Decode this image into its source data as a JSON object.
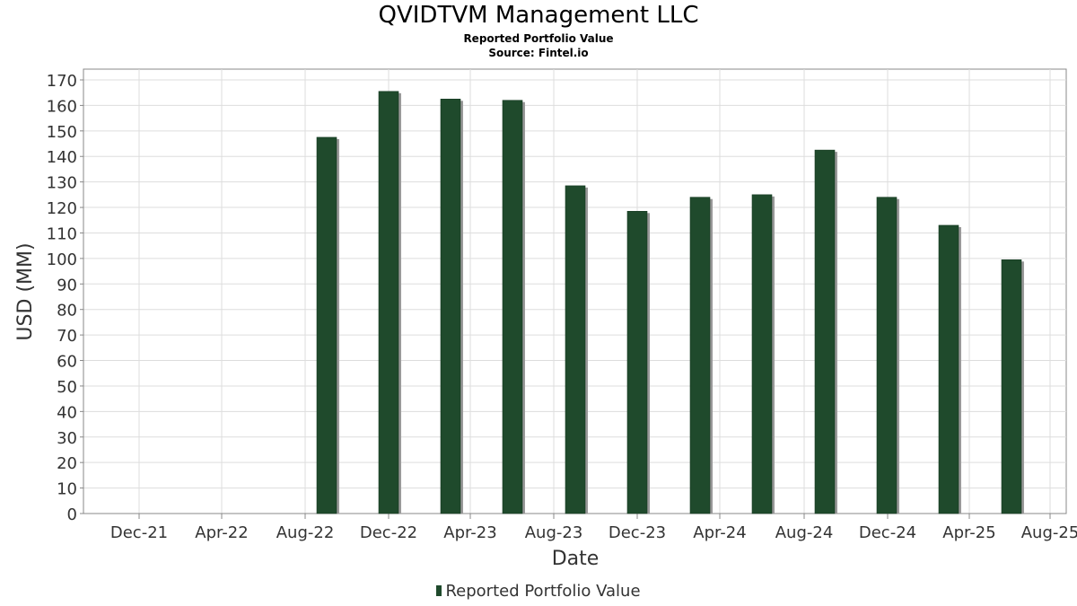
{
  "header": {
    "title": "QVIDTVM Management LLC",
    "subtitle": "Reported Portfolio Value",
    "source": "Source: Fintel.io"
  },
  "legend": {
    "label": "Reported Portfolio Value"
  },
  "colors": {
    "bar": "#1f4a2c",
    "bar_shadow": "#999999",
    "grid": "#dddddd",
    "axis": "#888888"
  },
  "chart_data": {
    "type": "bar",
    "title": "QVIDTVM Management LLC",
    "subtitle": "Reported Portfolio Value",
    "xlabel": "Date",
    "ylabel": "USD (MM)",
    "ylim": [
      0,
      172
    ],
    "yticks": [
      0,
      10,
      20,
      30,
      40,
      50,
      60,
      70,
      80,
      90,
      100,
      110,
      120,
      130,
      140,
      150,
      160,
      170
    ],
    "x_tick_labels": [
      "Dec-21",
      "Apr-22",
      "Aug-22",
      "Dec-22",
      "Apr-23",
      "Aug-23",
      "Dec-23",
      "Apr-24",
      "Aug-24",
      "Dec-24",
      "Apr-25",
      "Aug-25"
    ],
    "categories": [
      "Sep-22",
      "Dec-22",
      "Mar-23",
      "Jun-23",
      "Sep-23",
      "Dec-23",
      "Mar-24",
      "Jun-24",
      "Sep-24",
      "Dec-24",
      "Mar-25",
      "Jun-25"
    ],
    "series": [
      {
        "name": "Reported Portfolio Value",
        "values": [
          147.5,
          165.5,
          162.5,
          162,
          128.5,
          118.5,
          124,
          125,
          142.5,
          124,
          113,
          99.5
        ]
      }
    ],
    "grid": true,
    "legend_position": "bottom"
  }
}
